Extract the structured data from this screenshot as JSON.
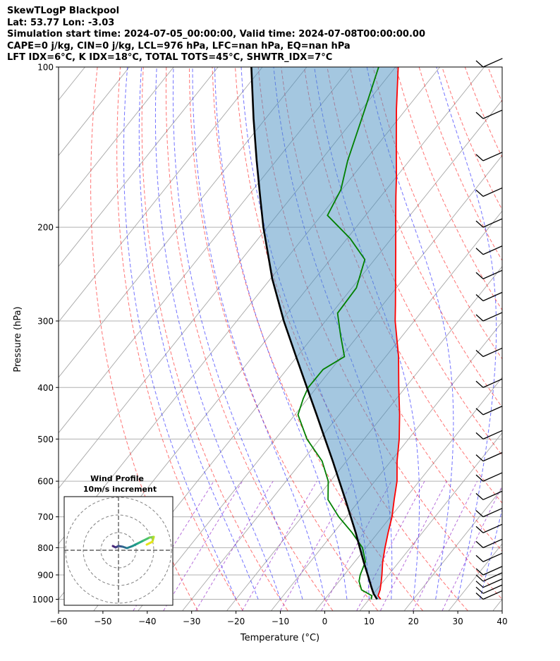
{
  "chart_data": {
    "type": "line",
    "subtype": "skew-t log-p diagram",
    "title_lines": [
      "SkewTLogP Blackpool",
      "Lat: 53.77   Lon: -3.03",
      "Simulation start time: 2024-07-05_00:00:00, Valid time: 2024-07-08T00:00:00.00",
      "CAPE=0 j/kg, CIN=0 j/kg, LCL=976 hPa, LFC=nan hPa, EQ=nan hPa",
      "LFT IDX=6°C, K IDX=18°C, TOTAL TOTS=45°C, SHWTR_IDX=7°C"
    ],
    "xlabel": "Temperature (°C)",
    "ylabel": "Pressure (hPa)",
    "x_ticks": [
      -60,
      -50,
      -40,
      -30,
      -20,
      -10,
      0,
      10,
      20,
      30,
      40
    ],
    "x_tick_labels": [
      "−60",
      "−50",
      "−40",
      "−30",
      "−20",
      "−10",
      "0",
      "10",
      "20",
      "30",
      "40"
    ],
    "xlim": [
      -60,
      40
    ],
    "y_ticks": [
      1000,
      900,
      800,
      700,
      600,
      500,
      400,
      300,
      200,
      100
    ],
    "y_tick_labels": [
      "1000",
      "900",
      "800",
      "700",
      "600",
      "500",
      "400",
      "300",
      "200",
      "100"
    ],
    "ylim": [
      1050,
      100
    ],
    "series": [
      {
        "name": "Temperature",
        "color": "#ff0000",
        "pressure": [
          1000,
          985,
          960,
          925,
          900,
          850,
          800,
          750,
          700,
          650,
          600,
          550,
          500,
          450,
          400,
          350,
          300,
          280,
          250,
          220,
          190,
          175,
          160,
          140,
          120,
          100
        ],
        "values": [
          12.6,
          11.4,
          10.8,
          9.5,
          8.5,
          6.3,
          4.3,
          2.3,
          0.3,
          -2.3,
          -5.0,
          -8.6,
          -12.1,
          -16.4,
          -21.5,
          -27.1,
          -34.3,
          -37.1,
          -41.8,
          -47.1,
          -53.2,
          -56.6,
          -60.2,
          -65.8,
          -72.2,
          -79.4
        ]
      },
      {
        "name": "Dewpoint",
        "color": "#008000",
        "pressure": [
          1000,
          985,
          960,
          925,
          900,
          850,
          800,
          750,
          700,
          650,
          600,
          550,
          500,
          450,
          420,
          400,
          370,
          350,
          320,
          290,
          260,
          230,
          210,
          190,
          170,
          150,
          120,
          100
        ],
        "values": [
          10.5,
          10.0,
          6.6,
          4.5,
          3.6,
          2.4,
          -0.8,
          -5.8,
          -11.7,
          -17.2,
          -20.5,
          -25.5,
          -32.9,
          -39.3,
          -41.0,
          -41.9,
          -41.8,
          -39.3,
          -43.9,
          -48.7,
          -49.0,
          -52.2,
          -59.3,
          -68.6,
          -70.2,
          -73.9,
          -79.3,
          -83.8
        ]
      },
      {
        "name": "Parcel profile",
        "color": "#000000",
        "pressure": [
          1000,
          976,
          950,
          900,
          850,
          800,
          750,
          700,
          650,
          600,
          550,
          500,
          450,
          400,
          350,
          300,
          250,
          200,
          175,
          150,
          125,
          100
        ],
        "values": [
          11.8,
          10.0,
          8.4,
          5.3,
          2.0,
          -1.4,
          -5.0,
          -9.0,
          -13.3,
          -18.0,
          -23.1,
          -28.8,
          -35.1,
          -42.2,
          -50.2,
          -59.4,
          -69.6,
          -80.9,
          -87.2,
          -94.4,
          -102.7,
          -112.5
        ]
      }
    ],
    "shaded_region": "Temperature minus parcel profile (CIN/CAPE area), light blue",
    "reference_lines": {
      "isotherms_color": "#a0a0a0",
      "dry_adiabats_color": "#ff0000",
      "moist_adiabats_color": "#0000ff",
      "mixing_ratio_color": "#9932cc"
    },
    "wind_barbs": {
      "pressure": [
        1000,
        975,
        950,
        925,
        900,
        850,
        800,
        750,
        700,
        650,
        600,
        550,
        500,
        450,
        400,
        350,
        300,
        275,
        250,
        225,
        200,
        175,
        150,
        125,
        100
      ],
      "speed_kt": [
        10,
        10,
        10,
        10,
        10,
        10,
        10,
        10,
        10,
        10,
        10,
        10,
        10,
        10,
        10,
        10,
        10,
        10,
        10,
        10,
        10,
        10,
        10,
        10,
        10
      ]
    },
    "inset": {
      "title_line1": "Wind Profile",
      "title_line2": "10m/s increment",
      "rings": 3
    }
  }
}
